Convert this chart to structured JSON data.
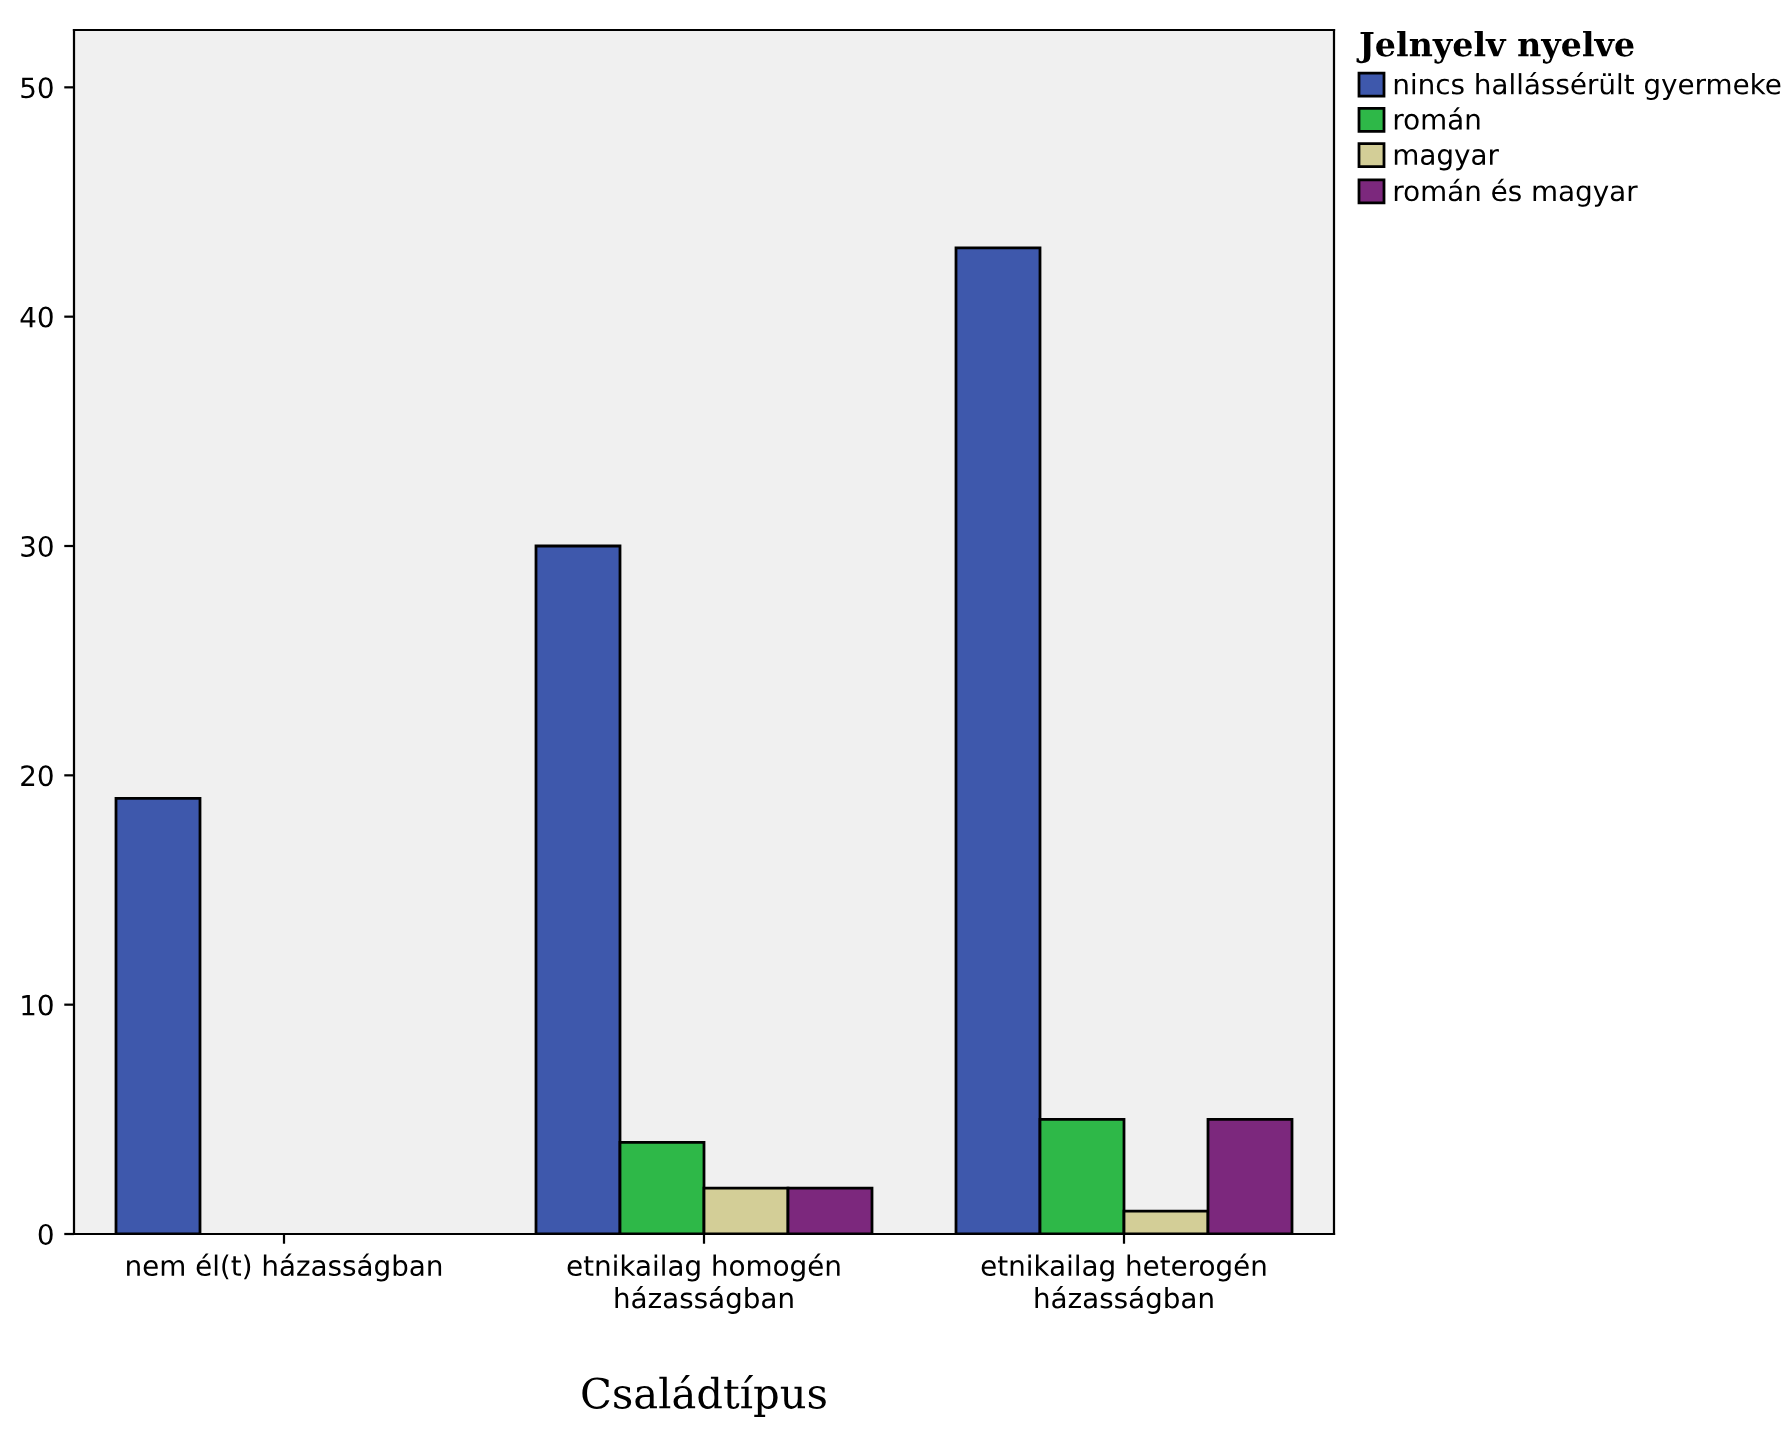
{
  "chart_data": {
    "type": "bar",
    "xlabel": "Családtípus",
    "legend_title": "Jelnyelv nyelve",
    "categories": [
      "nem él(t) házasságban",
      "etnikailag homogén\nházasságban",
      "etnikailag heterogén\nházasságban"
    ],
    "series": [
      {
        "name": "nincs hallássérült gyermeke",
        "color": "#3e58ac",
        "values": [
          19,
          30,
          43
        ]
      },
      {
        "name": "román",
        "color": "#2eb848",
        "values": [
          null,
          4,
          5
        ]
      },
      {
        "name": "magyar",
        "color": "#d3ce97",
        "values": [
          null,
          2,
          1
        ]
      },
      {
        "name": "román és magyar",
        "color": "#7c287d",
        "values": [
          null,
          2,
          5
        ]
      }
    ],
    "ylim": [
      0,
      52.5
    ],
    "yticks": [
      0,
      10,
      20,
      30,
      40,
      50
    ],
    "grid": false,
    "legend": "top right"
  }
}
